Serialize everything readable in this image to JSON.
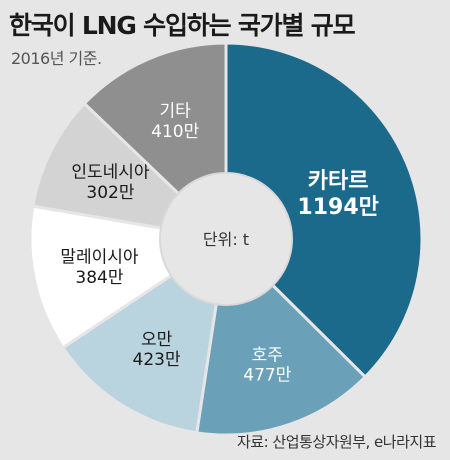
{
  "header": {
    "title": "한국이 LNG 수입하는 국가별 규모",
    "subtitle": "2016년 기준."
  },
  "chart_data": {
    "type": "pie",
    "unit_label": "단위: t",
    "unit_suffix": "만",
    "slices": [
      {
        "label": "카타르",
        "value": 1194,
        "color": "#1b6a8c",
        "text_color": "#ffffff"
      },
      {
        "label": "호주",
        "value": 477,
        "color": "#6aa1b9",
        "text_color": "#ffffff"
      },
      {
        "label": "오만",
        "value": 423,
        "color": "#b9d3df",
        "text_color": "#1a1a1a"
      },
      {
        "label": "말레이시아",
        "value": 384,
        "color": "#ffffff",
        "text_color": "#1a1a1a"
      },
      {
        "label": "인도네시아",
        "value": 302,
        "color": "#d3d3d3",
        "text_color": "#1a1a1a"
      },
      {
        "label": "기타",
        "value": 410,
        "color": "#8f8f8f",
        "text_color": "#ffffff"
      }
    ]
  },
  "source": "자료: 산업통상자원부, e나라지표"
}
